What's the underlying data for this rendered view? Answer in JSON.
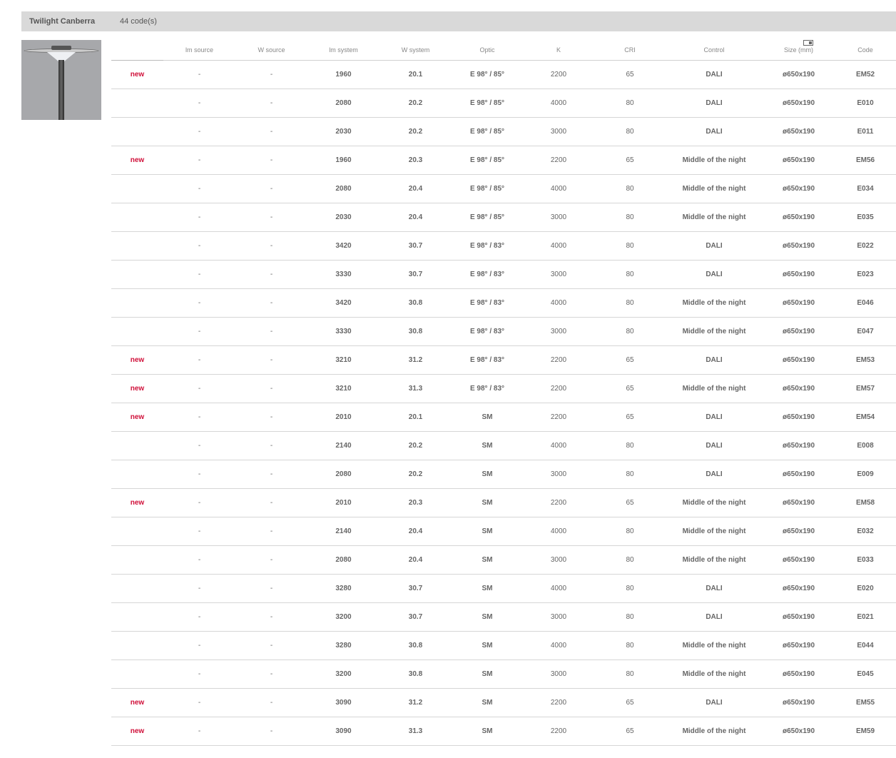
{
  "header": {
    "product_name": "Twilight Canberra",
    "code_count": "44 code(s)"
  },
  "columns": [
    "",
    "lm source",
    "W source",
    "lm system",
    "W system",
    "Optic",
    "K",
    "CRI",
    "Control",
    "Size (mm)",
    "Code"
  ],
  "size_icon": "dimensions-icon",
  "accent_color": "#d0103a",
  "rows": [
    [
      "new",
      "-",
      "-",
      "1960",
      "20.1",
      "E 98° / 85°",
      "2200",
      "65",
      "DALI",
      "ø650x190",
      "EM52"
    ],
    [
      "",
      "-",
      "-",
      "2080",
      "20.2",
      "E 98° / 85°",
      "4000",
      "80",
      "DALI",
      "ø650x190",
      "E010"
    ],
    [
      "",
      "-",
      "-",
      "2030",
      "20.2",
      "E 98° / 85°",
      "3000",
      "80",
      "DALI",
      "ø650x190",
      "E011"
    ],
    [
      "new",
      "-",
      "-",
      "1960",
      "20.3",
      "E 98° / 85°",
      "2200",
      "65",
      "Middle of the night",
      "ø650x190",
      "EM56"
    ],
    [
      "",
      "-",
      "-",
      "2080",
      "20.4",
      "E 98° / 85°",
      "4000",
      "80",
      "Middle of the night",
      "ø650x190",
      "E034"
    ],
    [
      "",
      "-",
      "-",
      "2030",
      "20.4",
      "E 98° / 85°",
      "3000",
      "80",
      "Middle of the night",
      "ø650x190",
      "E035"
    ],
    [
      "",
      "-",
      "-",
      "3420",
      "30.7",
      "E 98° / 83°",
      "4000",
      "80",
      "DALI",
      "ø650x190",
      "E022"
    ],
    [
      "",
      "-",
      "-",
      "3330",
      "30.7",
      "E 98° / 83°",
      "3000",
      "80",
      "DALI",
      "ø650x190",
      "E023"
    ],
    [
      "",
      "-",
      "-",
      "3420",
      "30.8",
      "E 98° / 83°",
      "4000",
      "80",
      "Middle of the night",
      "ø650x190",
      "E046"
    ],
    [
      "",
      "-",
      "-",
      "3330",
      "30.8",
      "E 98° / 83°",
      "3000",
      "80",
      "Middle of the night",
      "ø650x190",
      "E047"
    ],
    [
      "new",
      "-",
      "-",
      "3210",
      "31.2",
      "E 98° / 83°",
      "2200",
      "65",
      "DALI",
      "ø650x190",
      "EM53"
    ],
    [
      "new",
      "-",
      "-",
      "3210",
      "31.3",
      "E 98° / 83°",
      "2200",
      "65",
      "Middle of the night",
      "ø650x190",
      "EM57"
    ],
    [
      "new",
      "-",
      "-",
      "2010",
      "20.1",
      "SM",
      "2200",
      "65",
      "DALI",
      "ø650x190",
      "EM54"
    ],
    [
      "",
      "-",
      "-",
      "2140",
      "20.2",
      "SM",
      "4000",
      "80",
      "DALI",
      "ø650x190",
      "E008"
    ],
    [
      "",
      "-",
      "-",
      "2080",
      "20.2",
      "SM",
      "3000",
      "80",
      "DALI",
      "ø650x190",
      "E009"
    ],
    [
      "new",
      "-",
      "-",
      "2010",
      "20.3",
      "SM",
      "2200",
      "65",
      "Middle of the night",
      "ø650x190",
      "EM58"
    ],
    [
      "",
      "-",
      "-",
      "2140",
      "20.4",
      "SM",
      "4000",
      "80",
      "Middle of the night",
      "ø650x190",
      "E032"
    ],
    [
      "",
      "-",
      "-",
      "2080",
      "20.4",
      "SM",
      "3000",
      "80",
      "Middle of the night",
      "ø650x190",
      "E033"
    ],
    [
      "",
      "-",
      "-",
      "3280",
      "30.7",
      "SM",
      "4000",
      "80",
      "DALI",
      "ø650x190",
      "E020"
    ],
    [
      "",
      "-",
      "-",
      "3200",
      "30.7",
      "SM",
      "3000",
      "80",
      "DALI",
      "ø650x190",
      "E021"
    ],
    [
      "",
      "-",
      "-",
      "3280",
      "30.8",
      "SM",
      "4000",
      "80",
      "Middle of the night",
      "ø650x190",
      "E044"
    ],
    [
      "",
      "-",
      "-",
      "3200",
      "30.8",
      "SM",
      "3000",
      "80",
      "Middle of the night",
      "ø650x190",
      "E045"
    ],
    [
      "new",
      "-",
      "-",
      "3090",
      "31.2",
      "SM",
      "2200",
      "65",
      "DALI",
      "ø650x190",
      "EM55"
    ],
    [
      "new",
      "-",
      "-",
      "3090",
      "31.3",
      "SM",
      "2200",
      "65",
      "Middle of the night",
      "ø650x190",
      "EM59"
    ]
  ]
}
